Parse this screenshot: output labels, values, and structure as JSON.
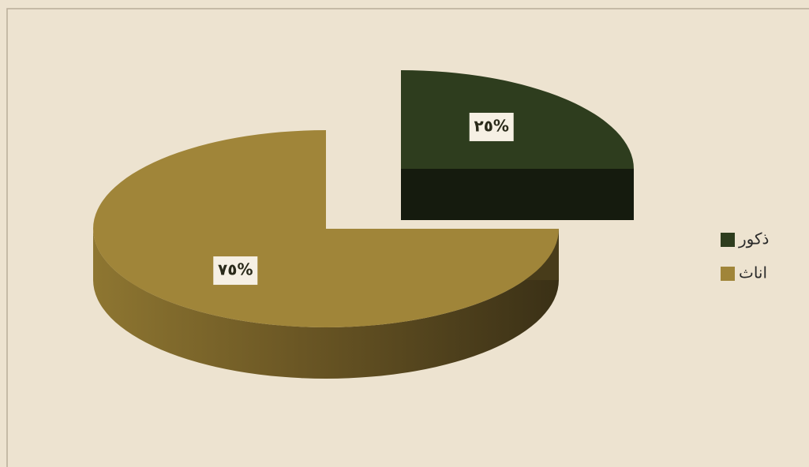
{
  "chart_data": {
    "type": "pie",
    "categories": [
      "ذكور",
      "اناث"
    ],
    "values": [
      25,
      75
    ],
    "value_labels": [
      "٢٥%",
      "٧٥%"
    ],
    "colors": [
      "#2e3d1e",
      "#a08539"
    ],
    "legend": "right"
  }
}
